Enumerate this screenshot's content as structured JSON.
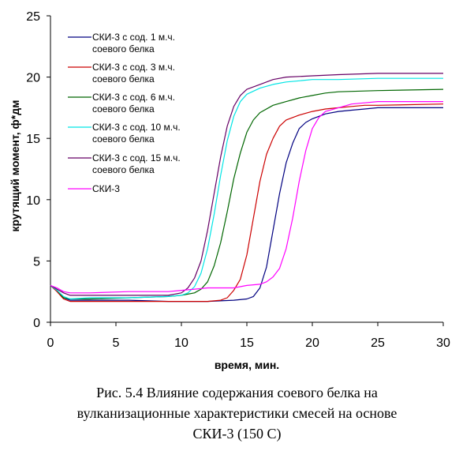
{
  "chart_data": {
    "type": "line",
    "title": "",
    "xlabel": "время, мин.",
    "ylabel": "крутящий момент, ф*дм",
    "xlim": [
      0,
      30
    ],
    "ylim": [
      0,
      25
    ],
    "x_ticks": [
      0,
      5,
      10,
      15,
      20,
      25,
      30
    ],
    "y_ticks": [
      0,
      5,
      10,
      15,
      20,
      25
    ],
    "legend_position": "top-left",
    "series": [
      {
        "name_line1": "СКИ-3 с сод. 1 м.ч.",
        "name_line2": "соевого белка",
        "color": "#000080",
        "points": [
          [
            0,
            3.0
          ],
          [
            0.5,
            2.6
          ],
          [
            1,
            2.0
          ],
          [
            1.5,
            1.8
          ],
          [
            3,
            1.8
          ],
          [
            6,
            1.8
          ],
          [
            9,
            1.7
          ],
          [
            12,
            1.7
          ],
          [
            14,
            1.8
          ],
          [
            15,
            1.9
          ],
          [
            15.5,
            2.1
          ],
          [
            16,
            2.8
          ],
          [
            16.5,
            4.5
          ],
          [
            17,
            7.5
          ],
          [
            17.5,
            10.5
          ],
          [
            18,
            13.0
          ],
          [
            18.5,
            14.6
          ],
          [
            19,
            15.8
          ],
          [
            19.5,
            16.3
          ],
          [
            20,
            16.6
          ],
          [
            21,
            17.0
          ],
          [
            22,
            17.2
          ],
          [
            23,
            17.3
          ],
          [
            24,
            17.4
          ],
          [
            25,
            17.5
          ],
          [
            30,
            17.5
          ]
        ]
      },
      {
        "name_line1": "СКИ-3 с сод. 3 м.ч.",
        "name_line2": "соевого белка",
        "color": "#CC0000",
        "points": [
          [
            0,
            3.0
          ],
          [
            0.5,
            2.5
          ],
          [
            1,
            1.9
          ],
          [
            1.5,
            1.7
          ],
          [
            3,
            1.7
          ],
          [
            6,
            1.7
          ],
          [
            9,
            1.7
          ],
          [
            12,
            1.7
          ],
          [
            13,
            1.8
          ],
          [
            13.5,
            2.0
          ],
          [
            14,
            2.6
          ],
          [
            14.5,
            3.5
          ],
          [
            15,
            5.5
          ],
          [
            15.5,
            8.5
          ],
          [
            16,
            11.5
          ],
          [
            16.5,
            13.7
          ],
          [
            17,
            15.0
          ],
          [
            17.5,
            16.0
          ],
          [
            18,
            16.5
          ],
          [
            19,
            16.9
          ],
          [
            20,
            17.2
          ],
          [
            21,
            17.4
          ],
          [
            22,
            17.5
          ],
          [
            23,
            17.6
          ],
          [
            24,
            17.7
          ],
          [
            25,
            17.7
          ],
          [
            30,
            17.8
          ]
        ]
      },
      {
        "name_line1": "СКИ-3 с сод. 6 м.ч.",
        "name_line2": "соевого белка",
        "color": "#006600",
        "points": [
          [
            0,
            3.0
          ],
          [
            0.5,
            2.6
          ],
          [
            1,
            2.0
          ],
          [
            1.5,
            1.9
          ],
          [
            3,
            1.9
          ],
          [
            6,
            2.0
          ],
          [
            9,
            2.1
          ],
          [
            10,
            2.2
          ],
          [
            11,
            2.4
          ],
          [
            11.5,
            2.7
          ],
          [
            12,
            3.3
          ],
          [
            12.5,
            4.6
          ],
          [
            13,
            6.5
          ],
          [
            13.5,
            9.0
          ],
          [
            14,
            11.7
          ],
          [
            14.5,
            13.8
          ],
          [
            15,
            15.5
          ],
          [
            15.5,
            16.5
          ],
          [
            16,
            17.1
          ],
          [
            17,
            17.7
          ],
          [
            18,
            18.0
          ],
          [
            19,
            18.3
          ],
          [
            20,
            18.5
          ],
          [
            21,
            18.7
          ],
          [
            22,
            18.8
          ],
          [
            25,
            18.9
          ],
          [
            30,
            19.0
          ]
        ]
      },
      {
        "name_line1": "СКИ-3 с сод. 10 м.ч.",
        "name_line2": "соевого белка",
        "color": "#00E5E5",
        "points": [
          [
            0,
            3.0
          ],
          [
            0.5,
            2.6
          ],
          [
            1,
            2.1
          ],
          [
            1.5,
            1.9
          ],
          [
            3,
            2.0
          ],
          [
            6,
            2.0
          ],
          [
            9,
            2.1
          ],
          [
            10,
            2.2
          ],
          [
            10.5,
            2.4
          ],
          [
            11,
            2.9
          ],
          [
            11.5,
            4.0
          ],
          [
            12,
            6.0
          ],
          [
            12.5,
            8.8
          ],
          [
            13,
            12.0
          ],
          [
            13.5,
            14.8
          ],
          [
            14,
            16.8
          ],
          [
            14.5,
            18.0
          ],
          [
            15,
            18.6
          ],
          [
            16,
            19.1
          ],
          [
            17,
            19.4
          ],
          [
            18,
            19.6
          ],
          [
            19,
            19.7
          ],
          [
            20,
            19.8
          ],
          [
            22,
            19.8
          ],
          [
            25,
            19.9
          ],
          [
            30,
            19.9
          ]
        ]
      },
      {
        "name_line1": "СКИ-3 с сод. 15 м.ч.",
        "name_line2": "соевого белка",
        "color": "#660066",
        "points": [
          [
            0,
            3.0
          ],
          [
            0.5,
            2.7
          ],
          [
            1,
            2.4
          ],
          [
            1.5,
            2.2
          ],
          [
            3,
            2.2
          ],
          [
            6,
            2.2
          ],
          [
            9,
            2.2
          ],
          [
            10,
            2.4
          ],
          [
            10.5,
            2.8
          ],
          [
            11,
            3.6
          ],
          [
            11.5,
            5.0
          ],
          [
            12,
            7.5
          ],
          [
            12.5,
            10.5
          ],
          [
            13,
            13.5
          ],
          [
            13.5,
            16.0
          ],
          [
            14,
            17.6
          ],
          [
            14.5,
            18.5
          ],
          [
            15,
            19.0
          ],
          [
            16,
            19.4
          ],
          [
            17,
            19.8
          ],
          [
            18,
            20.0
          ],
          [
            20,
            20.1
          ],
          [
            22,
            20.2
          ],
          [
            25,
            20.3
          ],
          [
            30,
            20.3
          ]
        ]
      },
      {
        "name_line1": "СКИ-3",
        "name_line2": "",
        "color": "#FF00FF",
        "points": [
          [
            0,
            3.0
          ],
          [
            0.5,
            2.8
          ],
          [
            1,
            2.5
          ],
          [
            1.5,
            2.4
          ],
          [
            3,
            2.4
          ],
          [
            6,
            2.5
          ],
          [
            9,
            2.5
          ],
          [
            10,
            2.6
          ],
          [
            11,
            2.7
          ],
          [
            12,
            2.8
          ],
          [
            14,
            2.8
          ],
          [
            15,
            3.0
          ],
          [
            16,
            3.1
          ],
          [
            16.5,
            3.3
          ],
          [
            17,
            3.7
          ],
          [
            17.5,
            4.4
          ],
          [
            18,
            6.0
          ],
          [
            18.5,
            8.5
          ],
          [
            19,
            11.5
          ],
          [
            19.5,
            14.0
          ],
          [
            20,
            15.8
          ],
          [
            20.5,
            16.7
          ],
          [
            21,
            17.2
          ],
          [
            22,
            17.5
          ],
          [
            23,
            17.8
          ],
          [
            24,
            17.9
          ],
          [
            25,
            18.0
          ],
          [
            30,
            18.0
          ]
        ]
      }
    ]
  },
  "caption": {
    "line1": "Рис. 5.4 Влияние содержания соевого белка на",
    "line2": "вулканизационные характеристики смесей на основе",
    "line3": "СКИ-3 (150 С)"
  }
}
